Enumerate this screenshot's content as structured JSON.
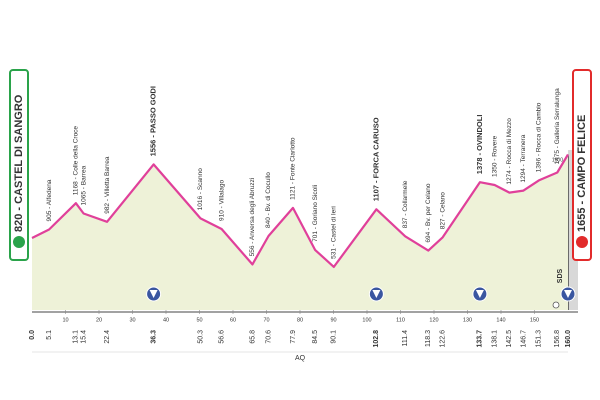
{
  "chart_data": {
    "type": "area",
    "x": [
      0,
      5.1,
      13.1,
      15.4,
      22.4,
      36.3,
      50.3,
      56.6,
      65.8,
      70.6,
      77.9,
      84.5,
      90.1,
      102.8,
      111.4,
      118.3,
      122.6,
      133.7,
      138.1,
      142.5,
      146.7,
      151.3,
      156.8,
      160
    ],
    "x_labels": [
      "0.0",
      "5.1",
      "13.1",
      "15.4",
      "22.4",
      "36.3",
      "50.3",
      "56.6",
      "65.8",
      "70.6",
      "77.9",
      "84.5",
      "90.1",
      "102.8",
      "111.4",
      "118.3",
      "122.6",
      "133.7",
      "138.1",
      "142.5",
      "146.7",
      "151.3",
      "156.8",
      "160.0"
    ],
    "values": [
      820,
      905,
      1168,
      1065,
      982,
      1556,
      1016,
      910,
      556,
      840,
      1121,
      701,
      531,
      1107,
      837,
      694,
      827,
      1378,
      1350,
      1274,
      1294,
      1396,
      1475,
      1655
    ],
    "point_labels": [
      "820 - CASTEL DI SANGRO",
      "905 - Alfedena",
      "1168 - Colle della Croce",
      "1065 - Barrea",
      "982 - Villetta Barrea",
      "1556 - PASSO GODI",
      "1016 - Scanno",
      "910 - Villalago",
      "556 - Anversa degli Abruzzi",
      "840 - Bv. di Cocullo",
      "1121 - Fonte Ciarlotto",
      "701 - Goriano Sicoli",
      "531 - Castel di Ieri",
      "1107 - FORCA CARUSO",
      "837 - Collarmele",
      "694 - Bv. per Celano",
      "827 - Celano",
      "1378 - OVINDOLI",
      "1350 - Rovere",
      "1274 - Rocca di Mezzo",
      "1294 - Terranera",
      "1396 - Rocca di Cambio",
      "1475 - Galleria Serralunga",
      "1655 - CAMPO FELICE"
    ],
    "markers": [
      5,
      13,
      17,
      23
    ],
    "color": "#e0409a",
    "fill": "#eef2d8",
    "xlim": [
      0,
      160
    ],
    "xticks": [
      10,
      20,
      30,
      40,
      50,
      60,
      70,
      80,
      90,
      100,
      110,
      120,
      130,
      140,
      150
    ],
    "ylim": [
      100,
      1700
    ],
    "yticks": [
      200,
      400,
      600,
      800,
      1000,
      1200,
      1400,
      1600
    ],
    "sprint_label": "SDS",
    "province": "AQ"
  }
}
